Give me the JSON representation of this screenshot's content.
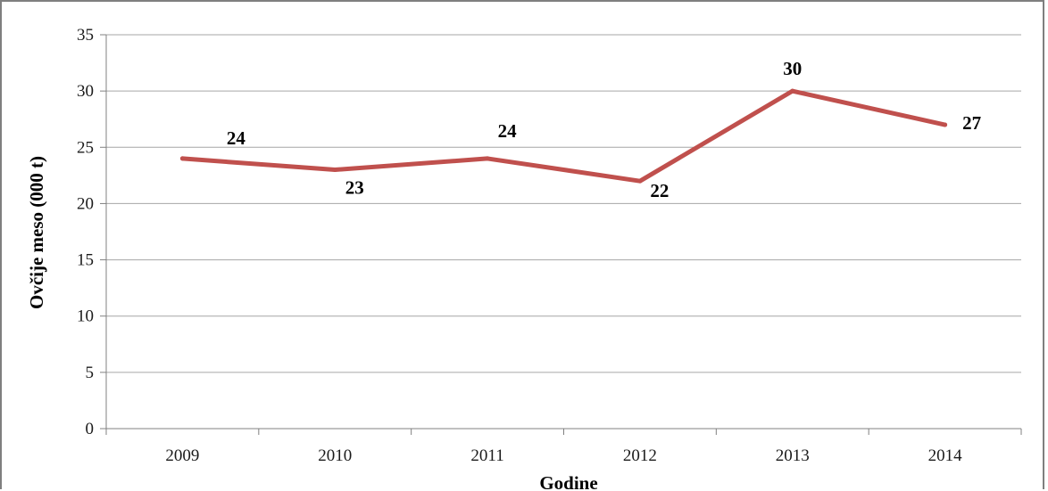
{
  "chart_data": {
    "type": "line",
    "categories": [
      "2009",
      "2010",
      "2011",
      "2012",
      "2013",
      "2014"
    ],
    "series": [
      {
        "values": [
          24,
          23,
          24,
          22,
          30,
          27
        ],
        "color": "#c0504d"
      }
    ],
    "data_labels": [
      "24",
      "23",
      "24",
      "22",
      "30",
      "27"
    ],
    "y_ticks": [
      "0",
      "5",
      "10",
      "15",
      "20",
      "25",
      "30",
      "35"
    ],
    "ylim": [
      0,
      35
    ],
    "xlabel": "Godine",
    "ylabel": "Ovčije meso (000 t)",
    "grid": true,
    "legend": "none"
  }
}
